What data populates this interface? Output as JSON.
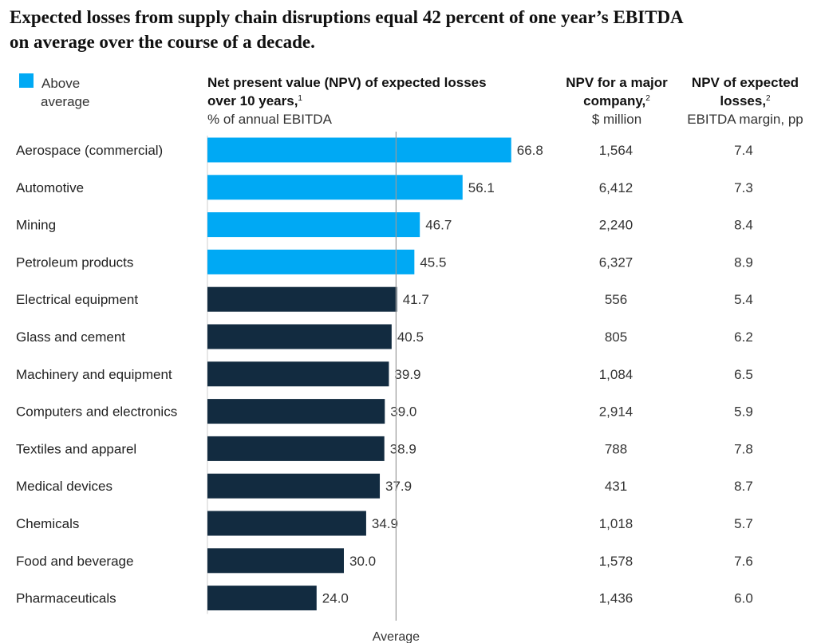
{
  "title": {
    "line1": "Expected losses from supply chain disruptions equal 42 percent of one year’s EBITDA",
    "line2": "on average over the course of a decade."
  },
  "legend": {
    "line1": "Above",
    "line2": "average",
    "color": "#00a9f4"
  },
  "columns": {
    "npv_pct": {
      "bold1": "Net present value (NPV) of expected losses",
      "bold2": "over 10 years,",
      "footnote": "1",
      "unit": "% of annual EBITDA"
    },
    "npv_major": {
      "bold1": "NPV for a major",
      "bold2": "company,",
      "footnote": "2",
      "unit": "$ million"
    },
    "npv_margin": {
      "bold1": "NPV of expected",
      "bold2": "losses,",
      "footnote": "2",
      "unit": "EBITDA margin, pp"
    }
  },
  "colors": {
    "above": "#00a9f4",
    "below": "#122b40",
    "average_line": "#9a9a9a"
  },
  "chart_data": {
    "type": "bar",
    "orientation": "horizontal",
    "categories": [
      "Aerospace (commercial)",
      "Automotive",
      "Mining",
      "Petroleum products",
      "Electrical equipment",
      "Glass and cement",
      "Machinery and equipment",
      "Computers and electronics",
      "Textiles and apparel",
      "Medical devices",
      "Chemicals",
      "Food and beverage",
      "Pharmaceuticals"
    ],
    "values": [
      66.8,
      56.1,
      46.7,
      45.5,
      41.7,
      40.5,
      39.9,
      39.0,
      38.9,
      37.9,
      34.9,
      30.0,
      24.0
    ],
    "value_labels": [
      "66.8",
      "56.1",
      "46.7",
      "45.5",
      "41.7",
      "40.5",
      "39.9",
      "39.0",
      "38.9",
      "37.9",
      "34.9",
      "30.0",
      "24.0"
    ],
    "above_average": [
      true,
      true,
      true,
      true,
      false,
      false,
      false,
      false,
      false,
      false,
      false,
      false,
      false
    ],
    "average": 42,
    "average_label": "Average",
    "npv_major_company": [
      "1,564",
      "6,412",
      "2,240",
      "6,327",
      "556",
      "805",
      "1,084",
      "2,914",
      "788",
      "431",
      "1,018",
      "1,578",
      "1,436"
    ],
    "npv_margin_pp": [
      "7.4",
      "7.3",
      "8.4",
      "8.9",
      "5.4",
      "6.2",
      "6.5",
      "5.9",
      "7.8",
      "8.7",
      "5.7",
      "7.6",
      "6.0"
    ]
  }
}
